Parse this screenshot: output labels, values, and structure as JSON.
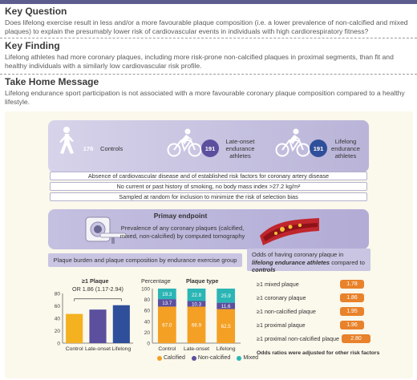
{
  "key_question": {
    "title": "Key Question",
    "text": "Does lifelong exercise result in less and/or a more favourable plaque composition (i.e. a lower prevalence of non-calcified and mixed plaques) to explain the presumably lower risk of cardiovascular events in individuals with high cardiorespiratory fitness?"
  },
  "key_finding": {
    "title": "Key Finding",
    "text": "Lifelong athletes had more coronary plaques, including more risk-prone non-calcified plaques in proximal segments, than fit and healthy individuals with a similarly low cardiovascular risk profile."
  },
  "take_home": {
    "title": "Take Home Message",
    "text": "Lifelong endurance sport participation is not associated with a more favourable coronary plaque composition compared to a healthy lifestyle."
  },
  "cohorts": [
    {
      "count": "176",
      "label": "Controls",
      "color": "#f0a022",
      "icon": "walking-person-icon"
    },
    {
      "count": "191",
      "label": "Late-onset endurance athletes",
      "color": "#5c4f9e",
      "icon": "cyclist-icon"
    },
    {
      "count": "191",
      "label": "Lifelong endurance athletes",
      "color": "#2f4f9a",
      "icon": "cyclist-icon"
    }
  ],
  "criteria": [
    "Absence of cardiovascular disease and of established risk factors for coronary artery disease",
    "No current or past history of smoking, no body mass index >27.2 kg/m²",
    "Sampled at random for inclusion to minimize the risk of selection bias"
  ],
  "endpoint": {
    "title": "Primay endpoint",
    "text": "Prevalence of any coronary plaques (calcified, mixed, non-calcified) by computed tomography",
    "icons": [
      "ct-scanner-icon",
      "artery-plaque-icon"
    ]
  },
  "plaque_panel": {
    "header": "Plaque burden and plaque composition by endurance exercise group"
  },
  "odds_panel": {
    "header_pre": "Odds of having coronary plaque in ",
    "header_em1": "lifelong endurance athletes",
    "header_mid": " compared to ",
    "header_em2": "controls",
    "rows": [
      {
        "label": "≥1 mixed plaque",
        "value": "1.78"
      },
      {
        "label": "≥1 coronary plaque",
        "value": "1.86"
      },
      {
        "label": "≥1 non-calcified plaque",
        "value": "1.95"
      },
      {
        "label": "≥1 proximal plaque",
        "value": "1.96"
      },
      {
        "label": "≥1 proximal non-calcified plaque",
        "value": "2.80"
      }
    ],
    "footnote": "Odds ratios were adjusted for other risk factors",
    "color": "#e8822b"
  },
  "chart_data": [
    {
      "type": "bar",
      "title": "≥1 Plaque",
      "annotation": "OR 1.86 (1.17-2.94)",
      "categories": [
        "Control",
        "Late-onset",
        "Lifelong"
      ],
      "values": [
        47,
        54,
        61
      ],
      "colors": [
        "#f4b120",
        "#5c4f9e",
        "#2f4f9a"
      ],
      "ylim": [
        0,
        80
      ],
      "yticks": [
        "0",
        "20",
        "40",
        "60",
        "80"
      ]
    },
    {
      "type": "bar",
      "stacked": true,
      "title": "Plaque type",
      "ylabel": "Percentage",
      "categories": [
        "Control",
        "Late-onset",
        "Lifelong"
      ],
      "ylim": [
        0,
        100
      ],
      "yticks": [
        "0",
        "20",
        "40",
        "60",
        "80",
        "100"
      ],
      "series": [
        {
          "name": "Calcified",
          "color": "#f4a024",
          "values": [
            67.0,
            66.9,
            62.5
          ],
          "labels": [
            "67.0",
            "66.9",
            "62.5"
          ]
        },
        {
          "name": "Non-calcified",
          "color": "#5c4f9e",
          "values": [
            13.7,
            10.3,
            11.6
          ],
          "labels": [
            "13.7",
            "10.3",
            "11.6"
          ]
        },
        {
          "name": "Mixed",
          "color": "#2bb5b5",
          "values": [
            19.3,
            22.8,
            25.9
          ],
          "labels": [
            "19.3",
            "22.8",
            "25.9"
          ]
        }
      ]
    }
  ]
}
